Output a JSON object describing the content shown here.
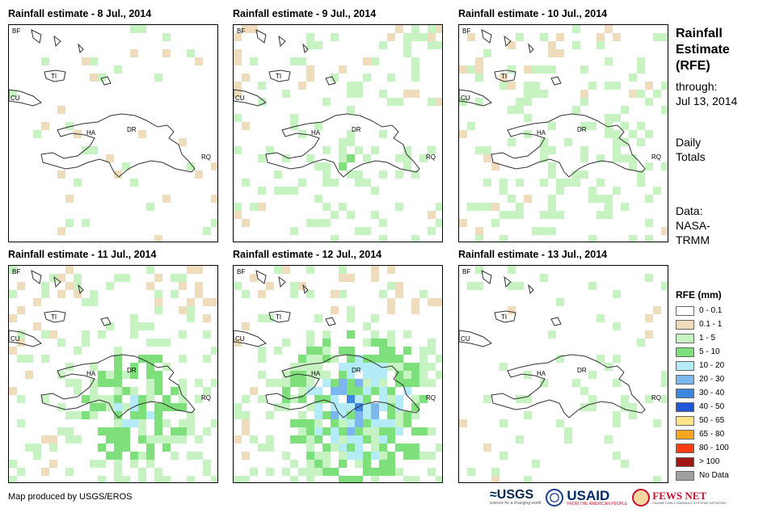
{
  "panels": [
    {
      "title": "Rainfall estimate - 8 Jul., 2014"
    },
    {
      "title": "Rainfall estimate - 9 Jul., 2014"
    },
    {
      "title": "Rainfall estimate - 10 Jul., 2014"
    },
    {
      "title": "Rainfall estimate - 11 Jul., 2014"
    },
    {
      "title": "Rainfall estimate - 12 Jul., 2014"
    },
    {
      "title": "Rainfall estimate - 13 Jul., 2014"
    }
  ],
  "map_labels": {
    "bf": "BF",
    "ti": "TI",
    "cu": "CU",
    "ha": "HA",
    "dr": "DR",
    "rq": "RQ"
  },
  "sidebar": {
    "title_line1": "Rainfall",
    "title_line2": "Estimate",
    "title_line3": "(RFE)",
    "through_label": "through:",
    "through_date": "Jul 13, 2014",
    "totals_line1": "Daily",
    "totals_line2": "Totals",
    "data_line1": "Data:",
    "data_line2": "NASA-",
    "data_line3": "TRMM"
  },
  "legend": {
    "title": "RFE (mm)",
    "items": [
      {
        "label": "0 - 0.1",
        "color": "#ffffff"
      },
      {
        "label": "0.1 - 1",
        "color": "#efdcbc"
      },
      {
        "label": "1 - 5",
        "color": "#c7f2c1"
      },
      {
        "label": "5 - 10",
        "color": "#7ee07a"
      },
      {
        "label": "10 - 20",
        "color": "#b3ecf7"
      },
      {
        "label": "20 - 30",
        "color": "#7cb6ee"
      },
      {
        "label": "30 - 40",
        "color": "#3d86df"
      },
      {
        "label": "40 - 50",
        "color": "#1f55d9"
      },
      {
        "label": "50 - 65",
        "color": "#fde58b"
      },
      {
        "label": "65 - 80",
        "color": "#ffa51f"
      },
      {
        "label": "80 - 100",
        "color": "#ff3b0f"
      },
      {
        "label": "> 100",
        "color": "#a21616"
      },
      {
        "label": "No Data",
        "color": "#a0a0a0"
      }
    ]
  },
  "footer": {
    "credit": "Map produced by USGS/EROS"
  },
  "logos": {
    "usgs": "≈USGS",
    "usgs_tagline": "science for a changing world",
    "usaid": "USAID",
    "usaid_tagline": "FROM THE AMERICAN PEOPLE",
    "fews": "FEWS NET",
    "fews_tagline": "FAMINE EARLY WARNING SYSTEMS NETWORK"
  }
}
